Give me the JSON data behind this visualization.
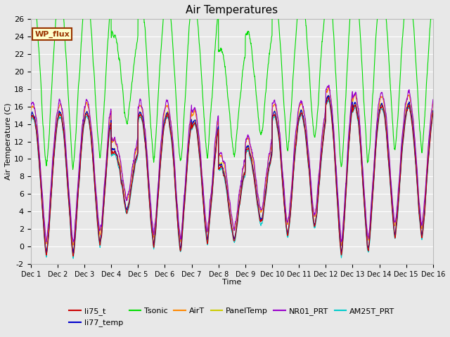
{
  "title": "Air Temperatures",
  "xlabel": "Time",
  "ylabel": "Air Temperature (C)",
  "ylim": [
    -2,
    26
  ],
  "xlim": [
    0,
    15
  ],
  "xtick_labels": [
    "Dec 1",
    "Dec 2",
    "Dec 3",
    "Dec 4",
    "Dec 5",
    "Dec 6",
    "Dec 7",
    "Dec 8",
    "Dec 9",
    "Dec 10",
    "Dec 11",
    "Dec 12",
    "Dec 13",
    "Dec 14",
    "Dec 15",
    "Dec 16"
  ],
  "ytick_values": [
    -2,
    0,
    2,
    4,
    6,
    8,
    10,
    12,
    14,
    16,
    18,
    20,
    22,
    24,
    26
  ],
  "background_color": "#e8e8e8",
  "plot_bg_color": "#e8e8e8",
  "series_colors": {
    "li75_t": "#cc0000",
    "li77_temp": "#0000cc",
    "Tsonic": "#00dd00",
    "AirT": "#ff8800",
    "PanelTemp": "#cccc00",
    "NR01_PRT": "#9900cc",
    "AM25T_PRT": "#00cccc"
  },
  "annotation_text": "WP_flux",
  "annotation_bg": "#ffffcc",
  "annotation_border": "#993300",
  "figsize": [
    6.4,
    4.8
  ],
  "dpi": 100
}
